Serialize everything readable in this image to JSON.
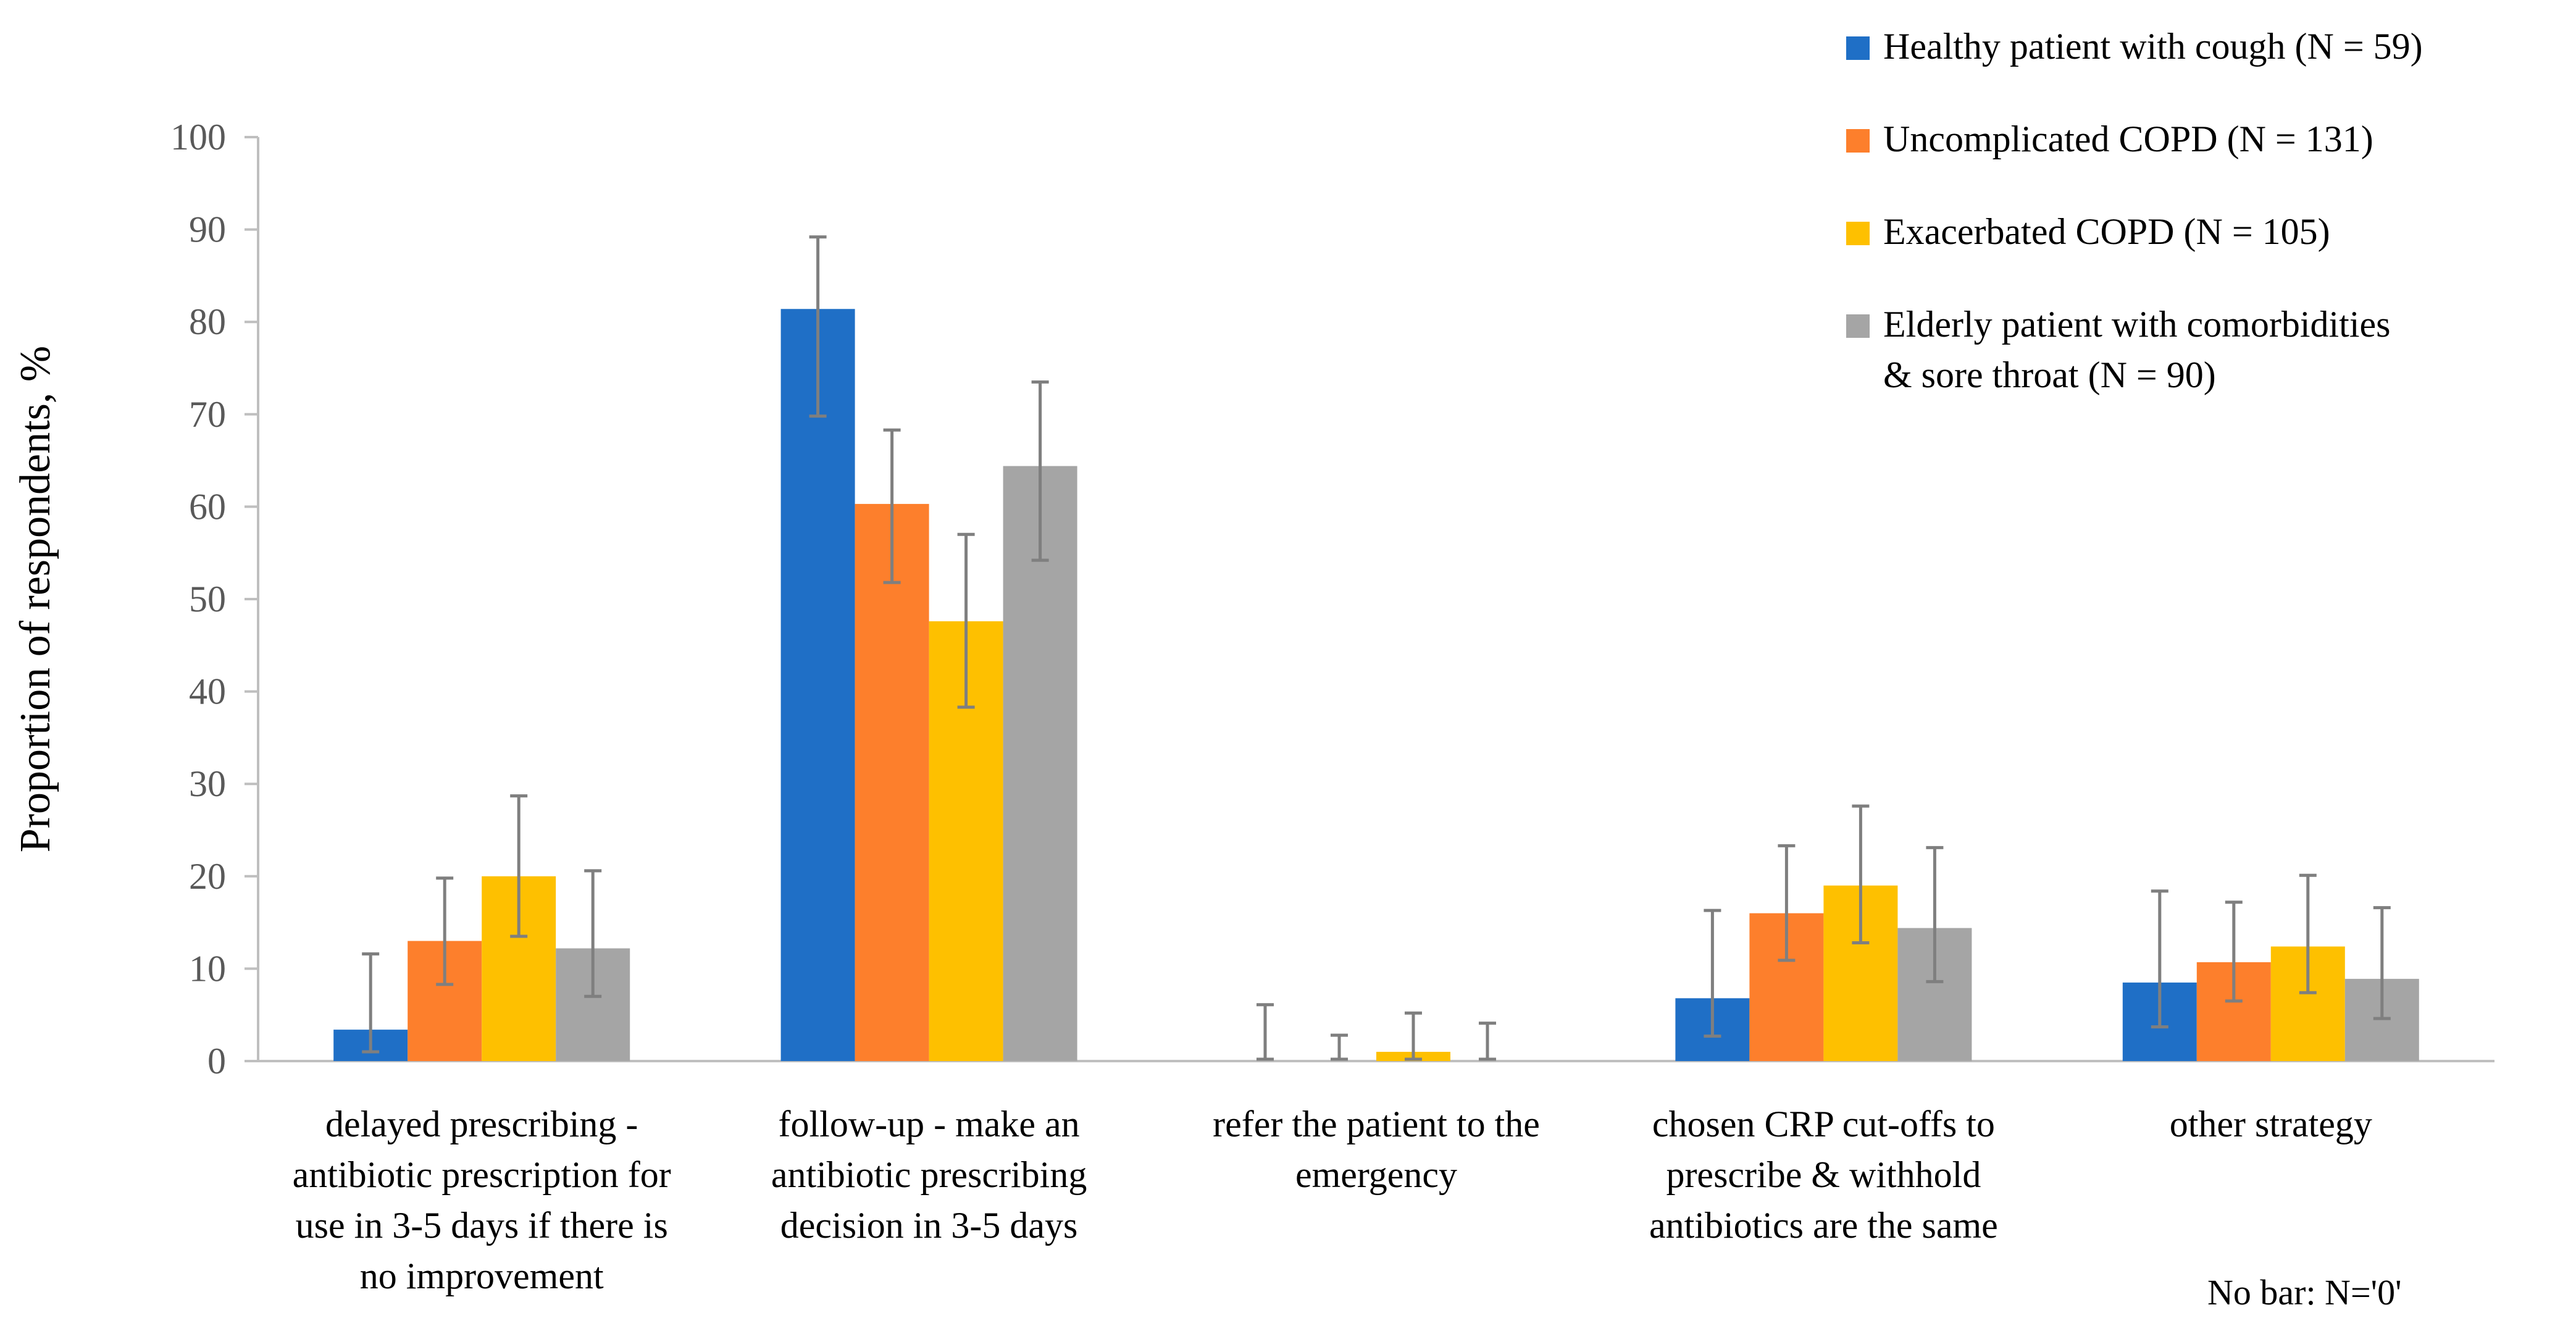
{
  "chart_data": {
    "type": "bar",
    "title": "",
    "xlabel": "",
    "ylabel": "Proportion of respondents, %",
    "ylim": [
      0,
      100
    ],
    "yticks": [
      0,
      10,
      20,
      30,
      40,
      50,
      60,
      70,
      80,
      90,
      100
    ],
    "grid": false,
    "legend_position": "top-right",
    "categories": [
      [
        "delayed prescribing -",
        "antibiotic prescription for",
        "use in 3-5 days if there is",
        "no improvement"
      ],
      [
        "follow-up - make an",
        "antibiotic prescribing",
        "decision in 3-5 days"
      ],
      [
        "refer the patient to the",
        "emergency"
      ],
      [
        "chosen CRP cut-offs to",
        "prescribe & withhold",
        "antibiotics are the same"
      ],
      [
        "other strategy"
      ]
    ],
    "series": [
      {
        "name": "Healthy patient with cough (N = 59)",
        "legend_lines": [
          "Healthy patient with cough (N = 59)"
        ],
        "color": "#1f6fc6",
        "values": [
          3.4,
          81.4,
          0,
          6.8,
          8.5
        ],
        "error_low": [
          1.0,
          69.8,
          0.2,
          2.7,
          3.7
        ],
        "error_high": [
          11.6,
          89.2,
          6.1,
          16.3,
          18.4
        ],
        "bar_shown": [
          true,
          true,
          false,
          true,
          true
        ]
      },
      {
        "name": "Uncomplicated COPD (N = 131)",
        "legend_lines": [
          "Uncomplicated COPD (N = 131)"
        ],
        "color": "#fd7f2c",
        "values": [
          13.0,
          60.3,
          0,
          16.0,
          10.7
        ],
        "error_low": [
          8.3,
          51.8,
          0.2,
          10.9,
          6.5
        ],
        "error_high": [
          19.8,
          68.3,
          2.8,
          23.3,
          17.2
        ],
        "bar_shown": [
          true,
          true,
          false,
          true,
          true
        ]
      },
      {
        "name": "Exacerbated COPD (N = 105)",
        "legend_lines": [
          "Exacerbated COPD (N = 105)"
        ],
        "color": "#fec000",
        "values": [
          20.0,
          47.6,
          1.0,
          19.0,
          12.4
        ],
        "error_low": [
          13.5,
          38.3,
          0.2,
          12.8,
          7.4
        ],
        "error_high": [
          28.7,
          57.0,
          5.2,
          27.6,
          20.1
        ],
        "bar_shown": [
          true,
          true,
          true,
          true,
          true
        ]
      },
      {
        "name": "Elderly patient with comorbidities & sore throat (N = 90)",
        "legend_lines": [
          "Elderly patient with comorbidities",
          "& sore throat (N = 90)"
        ],
        "color": "#a5a5a5",
        "values": [
          12.2,
          64.4,
          0,
          14.4,
          8.9
        ],
        "error_low": [
          7.0,
          54.2,
          0.2,
          8.6,
          4.6
        ],
        "error_high": [
          20.6,
          73.5,
          4.1,
          23.1,
          16.6
        ],
        "bar_shown": [
          true,
          true,
          false,
          true,
          true
        ]
      }
    ],
    "annotations": [
      "No bar: N='0'"
    ]
  }
}
